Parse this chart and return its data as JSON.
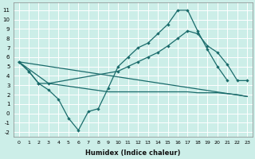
{
  "xlabel": "Humidex (Indice chaleur)",
  "bg_color": "#cceee8",
  "grid_color": "#ffffff",
  "line_color": "#1a6b6b",
  "xlim": [
    -0.5,
    23.5
  ],
  "ylim": [
    -2.5,
    11.8
  ],
  "xticks": [
    0,
    1,
    2,
    3,
    4,
    5,
    6,
    7,
    8,
    9,
    10,
    11,
    12,
    13,
    14,
    15,
    16,
    17,
    18,
    19,
    20,
    21,
    22,
    23
  ],
  "yticks": [
    -2,
    -1,
    0,
    1,
    2,
    3,
    4,
    5,
    6,
    7,
    8,
    9,
    10,
    11
  ],
  "line1_x": [
    0,
    1,
    2,
    3,
    4,
    5,
    6,
    7,
    8,
    9,
    10,
    11,
    12,
    13,
    14,
    15,
    16,
    17,
    18,
    19,
    20,
    21
  ],
  "line1_y": [
    5.5,
    4.5,
    3.2,
    2.5,
    1.5,
    -0.5,
    -1.8,
    0.2,
    0.5,
    2.7,
    5.0,
    6.0,
    7.0,
    7.5,
    8.5,
    9.5,
    11.0,
    11.0,
    8.8,
    6.8,
    5.0,
    3.5
  ],
  "line2_x": [
    0,
    1,
    2,
    3,
    10,
    11,
    12,
    13,
    14,
    15,
    16,
    17,
    18,
    19,
    20,
    21,
    22,
    23
  ],
  "line2_y": [
    5.5,
    4.5,
    3.2,
    3.2,
    4.5,
    5.0,
    5.5,
    6.0,
    6.5,
    7.2,
    8.0,
    8.8,
    8.5,
    7.2,
    6.5,
    5.2,
    3.5,
    3.5
  ],
  "line3_x": [
    0,
    3,
    9,
    10,
    11,
    12,
    13,
    14,
    15,
    16,
    17,
    18,
    19,
    20,
    21,
    22,
    23
  ],
  "line3_y": [
    5.5,
    3.2,
    2.3,
    2.3,
    2.3,
    2.3,
    2.3,
    2.3,
    2.3,
    2.3,
    2.3,
    2.2,
    2.2,
    2.2,
    2.1,
    2.0,
    1.8
  ],
  "line4_x": [
    0,
    23
  ],
  "line4_y": [
    5.5,
    1.8
  ]
}
